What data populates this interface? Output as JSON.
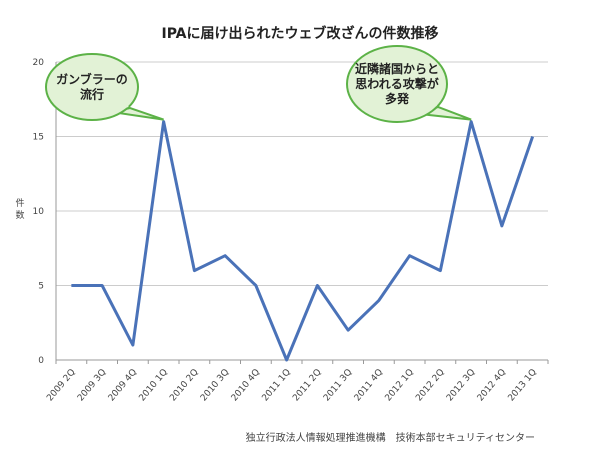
{
  "chart_data": {
    "type": "line",
    "title": "IPAに届け出られたウェブ改ざんの件数推移",
    "ylabel": "件数",
    "xlabel": "",
    "ylim": [
      0,
      20
    ],
    "yticks": [
      0,
      5,
      10,
      15,
      20
    ],
    "grid": true,
    "categories": [
      "2009 2Q",
      "2009 3Q",
      "2009 4Q",
      "2010 1Q",
      "2010 2Q",
      "2010 3Q",
      "2010 4Q",
      "2011 1Q",
      "2011 2Q",
      "2011 3Q",
      "2011 4Q",
      "2012 1Q",
      "2012 2Q",
      "2012 3Q",
      "2012 4Q",
      "2013 1Q"
    ],
    "values": [
      5,
      5,
      1,
      16,
      6,
      7,
      5,
      0,
      5,
      2,
      4,
      7,
      6,
      16,
      9,
      15
    ],
    "line_color": "#4a72b8",
    "annotations": [
      {
        "lines": [
          "ガンブラーの",
          "流行"
        ],
        "category": "2010 1Q",
        "fill": "#e2f2d6",
        "stroke": "#5cb247"
      },
      {
        "lines": [
          "近隣諸国からと",
          "思われる攻撃が",
          "多発"
        ],
        "category": "2012 3Q",
        "fill": "#e2f2d6",
        "stroke": "#5cb247"
      }
    ],
    "source": "独立行政法人情報処理推進機構　技術本部セキュリティセンター"
  }
}
